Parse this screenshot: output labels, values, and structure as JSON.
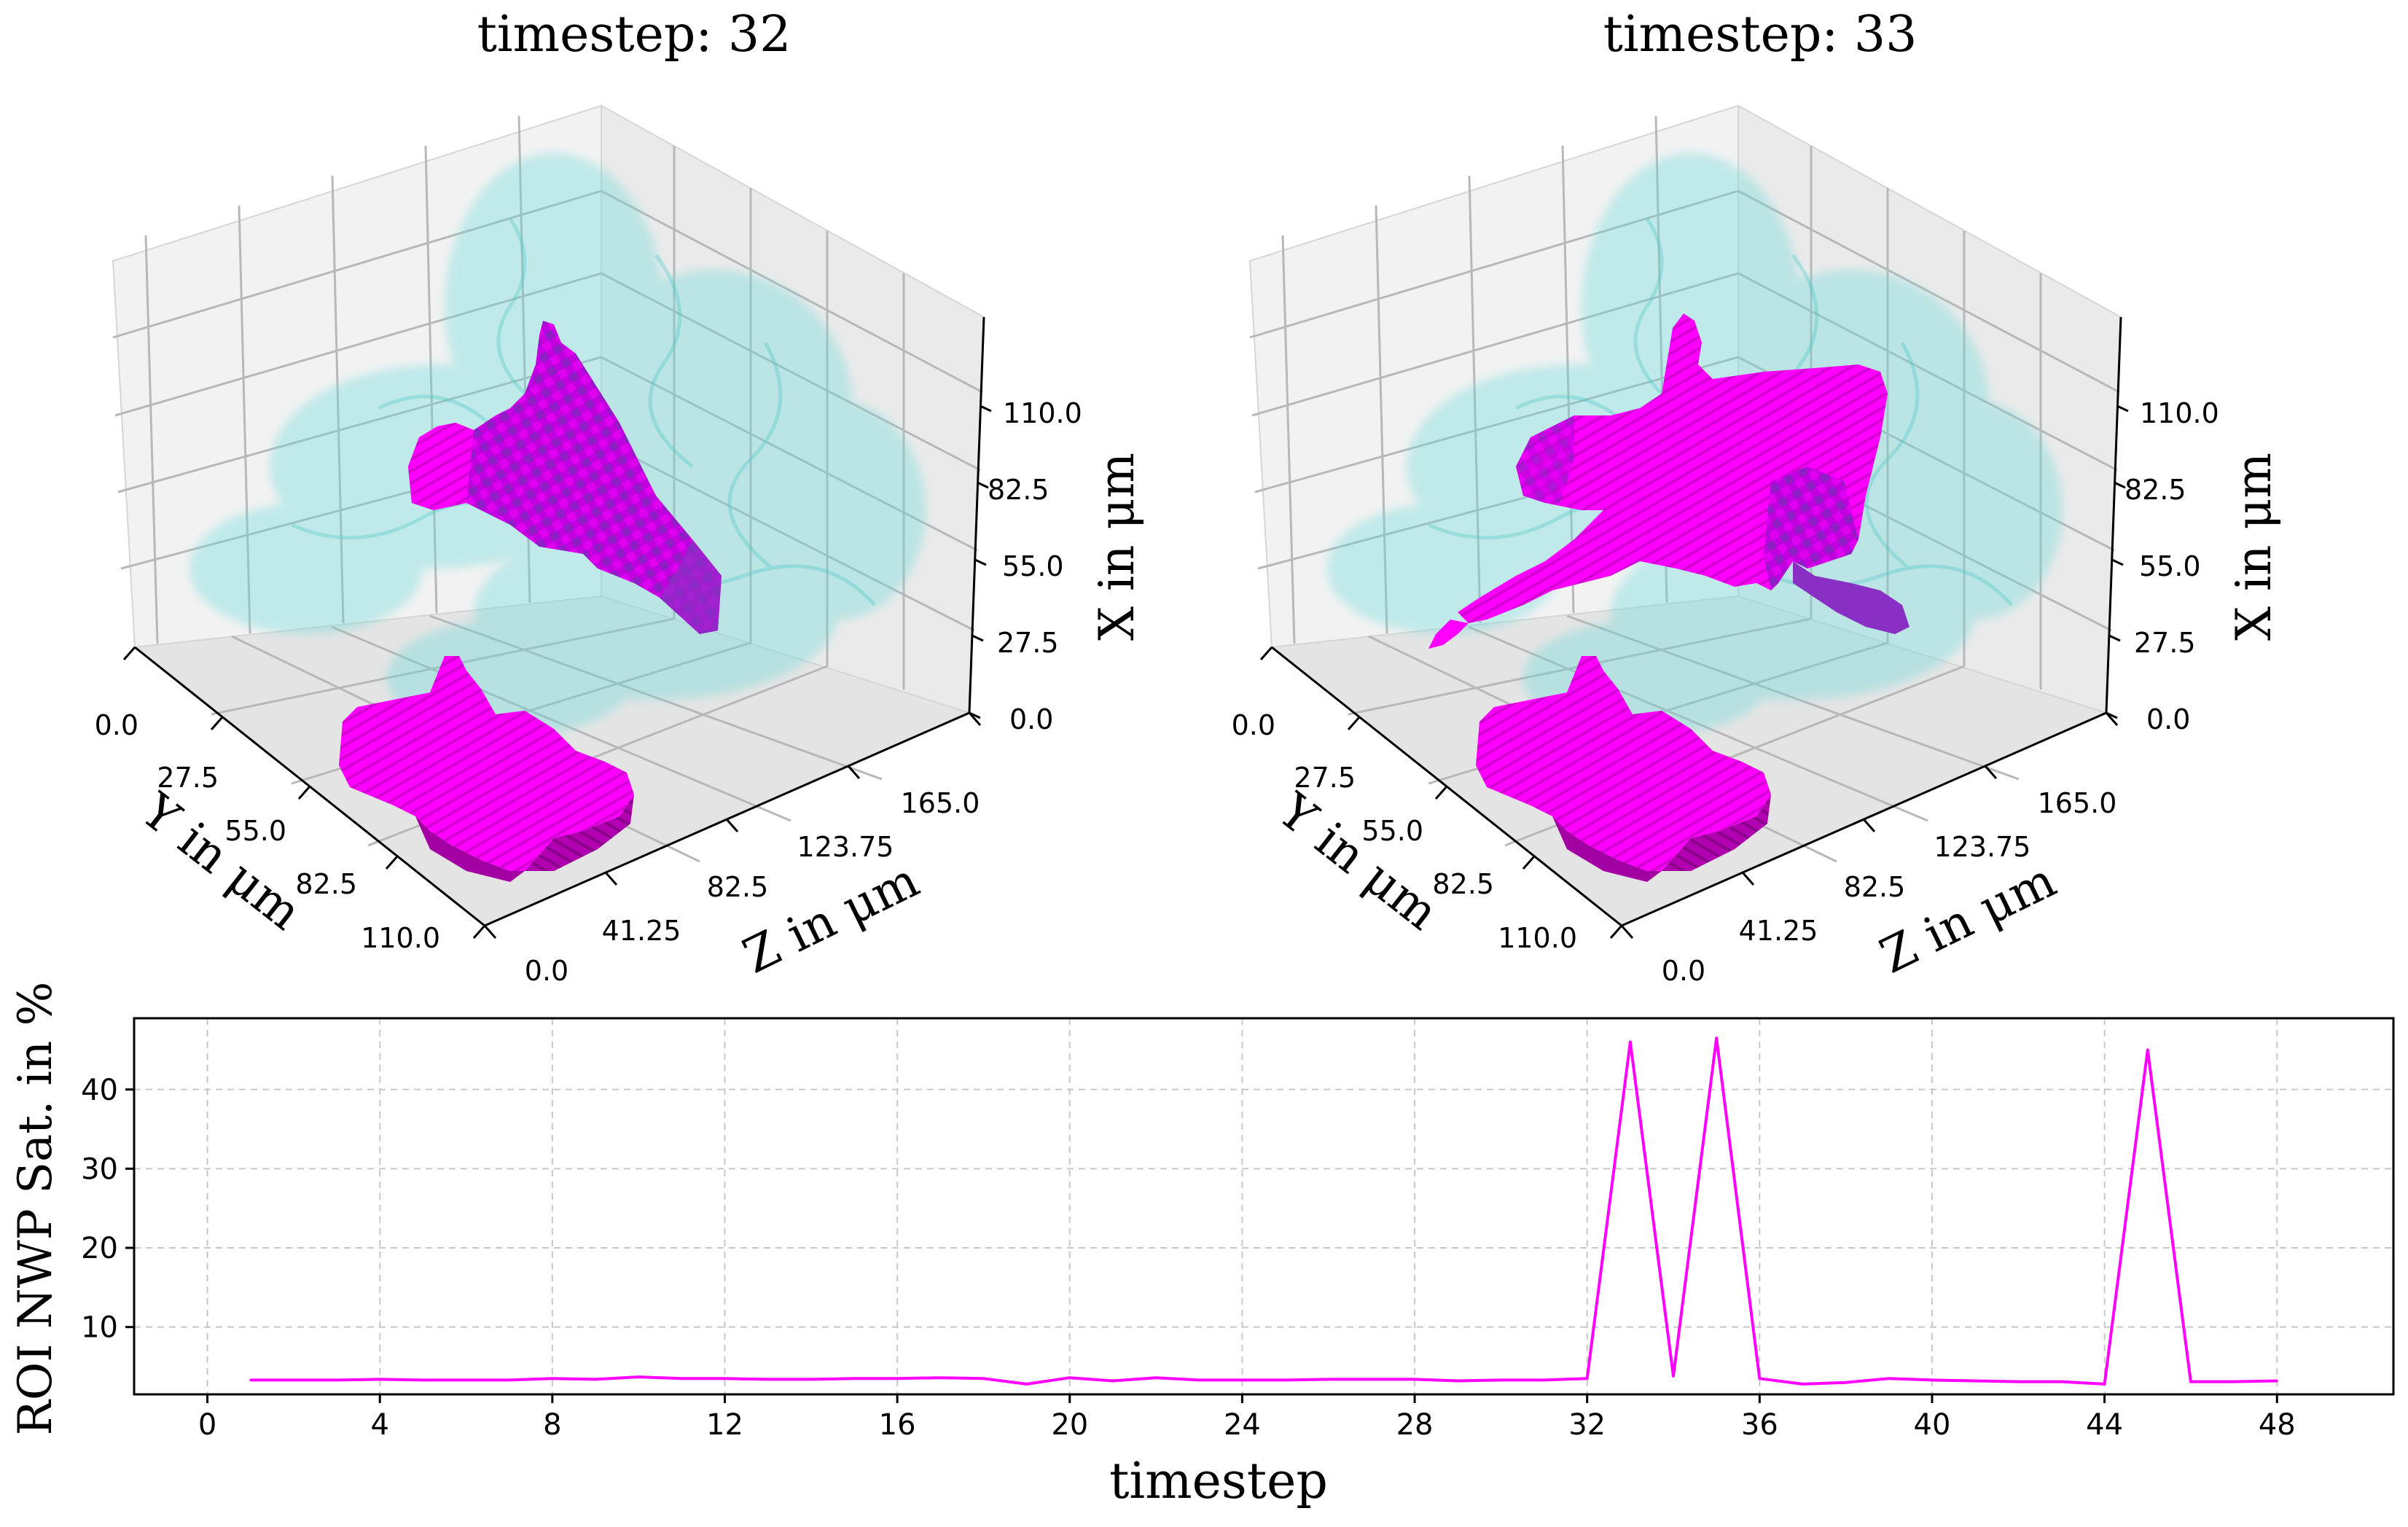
{
  "colors": {
    "nwp": "#ff00ff",
    "nwp_dark": "#9a009a",
    "nwp_mid": "#c800c8",
    "pore": "#66d9d9",
    "pane": "#f2f2f2",
    "grid": "#b0b0b0"
  },
  "panels": [
    {
      "title": "timestep: 32",
      "x_label": "X in μm",
      "y_label": "Y in μm",
      "z_label": "Z in μm",
      "x_ticks": [
        "0.0",
        "27.5",
        "55.0",
        "82.5",
        "110.0"
      ],
      "y_ticks": [
        "0.0",
        "27.5",
        "55.0",
        "82.5",
        "110.0"
      ],
      "z_ticks": [
        "0.0",
        "41.25",
        "82.5",
        "123.75",
        "165.0"
      ]
    },
    {
      "title": "timestep: 33",
      "x_label": "X in μm",
      "y_label": "Y in μm",
      "z_label": "Z in μm",
      "x_ticks": [
        "0.0",
        "27.5",
        "55.0",
        "82.5",
        "110.0"
      ],
      "y_ticks": [
        "0.0",
        "27.5",
        "55.0",
        "82.5",
        "110.0"
      ],
      "z_ticks": [
        "0.0",
        "41.25",
        "82.5",
        "123.75",
        "165.0"
      ]
    }
  ],
  "chart_data": {
    "type": "line",
    "title": "",
    "xlabel": "timestep",
    "ylabel": "ROI NWP Sat. in %",
    "xlim": [
      -1.7,
      50.7
    ],
    "ylim": [
      1.5,
      49
    ],
    "xticks": [
      0,
      4,
      8,
      12,
      16,
      20,
      24,
      28,
      32,
      36,
      40,
      44,
      48
    ],
    "yticks": [
      10,
      20,
      30,
      40
    ],
    "grid": true,
    "series": [
      {
        "name": "ROI NWP Sat.",
        "x": [
          1,
          2,
          3,
          4,
          5,
          6,
          7,
          8,
          9,
          10,
          11,
          12,
          13,
          14,
          15,
          16,
          17,
          18,
          19,
          20,
          21,
          22,
          23,
          24,
          25,
          26,
          27,
          28,
          29,
          30,
          31,
          32,
          33,
          34,
          35,
          36,
          37,
          38,
          39,
          40,
          41,
          42,
          43,
          44,
          45,
          46,
          47,
          48
        ],
        "y": [
          3.3,
          3.3,
          3.3,
          3.4,
          3.3,
          3.3,
          3.3,
          3.5,
          3.4,
          3.7,
          3.5,
          3.5,
          3.4,
          3.4,
          3.5,
          3.5,
          3.6,
          3.5,
          2.8,
          3.6,
          3.2,
          3.6,
          3.3,
          3.3,
          3.3,
          3.4,
          3.4,
          3.4,
          3.2,
          3.3,
          3.3,
          3.5,
          46.0,
          3.8,
          46.5,
          3.5,
          2.8,
          3.0,
          3.5,
          3.3,
          3.2,
          3.1,
          3.1,
          2.8,
          45.0,
          3.1,
          3.1,
          3.2
        ]
      }
    ]
  }
}
